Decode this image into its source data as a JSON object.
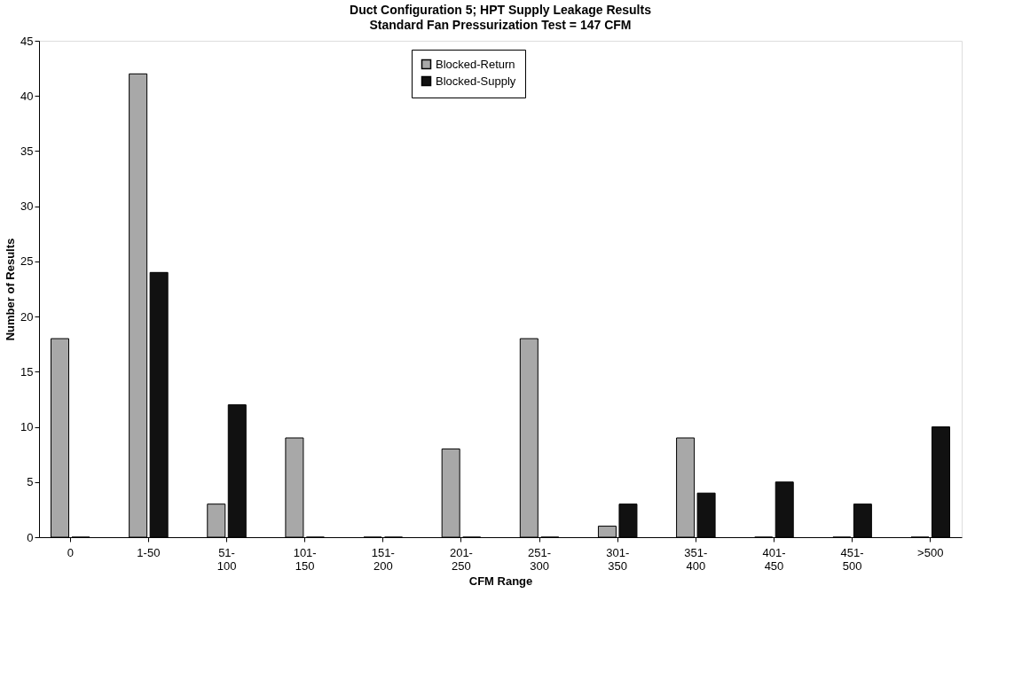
{
  "chart_data": {
    "type": "bar",
    "title": "Duct Configuration 5; HPT Supply Leakage Results",
    "subtitle": "Standard Fan Pressurization Test = 147 CFM",
    "xlabel": "CFM Range",
    "ylabel": "Number of Results",
    "categories": [
      "0",
      "1-50",
      "51-\n100",
      "101-\n150",
      "151-\n200",
      "201-\n250",
      "251-\n300",
      "301-\n350",
      "351-\n400",
      "401-\n450",
      "451-\n500",
      ">500"
    ],
    "series": [
      {
        "name": "Blocked-Return",
        "color": "#a8a8a8",
        "values": [
          18,
          42,
          3,
          9,
          0,
          8,
          18,
          1,
          9,
          0,
          0,
          0
        ]
      },
      {
        "name": "Blocked-Supply",
        "color": "#111111",
        "values": [
          0,
          24,
          12,
          0,
          0,
          0,
          0,
          3,
          4,
          5,
          3,
          10
        ]
      }
    ],
    "ylim": [
      0,
      45
    ],
    "yticks": [
      0,
      5,
      10,
      15,
      20,
      25,
      30,
      35,
      40,
      45
    ],
    "grid": false,
    "legend": "top"
  }
}
